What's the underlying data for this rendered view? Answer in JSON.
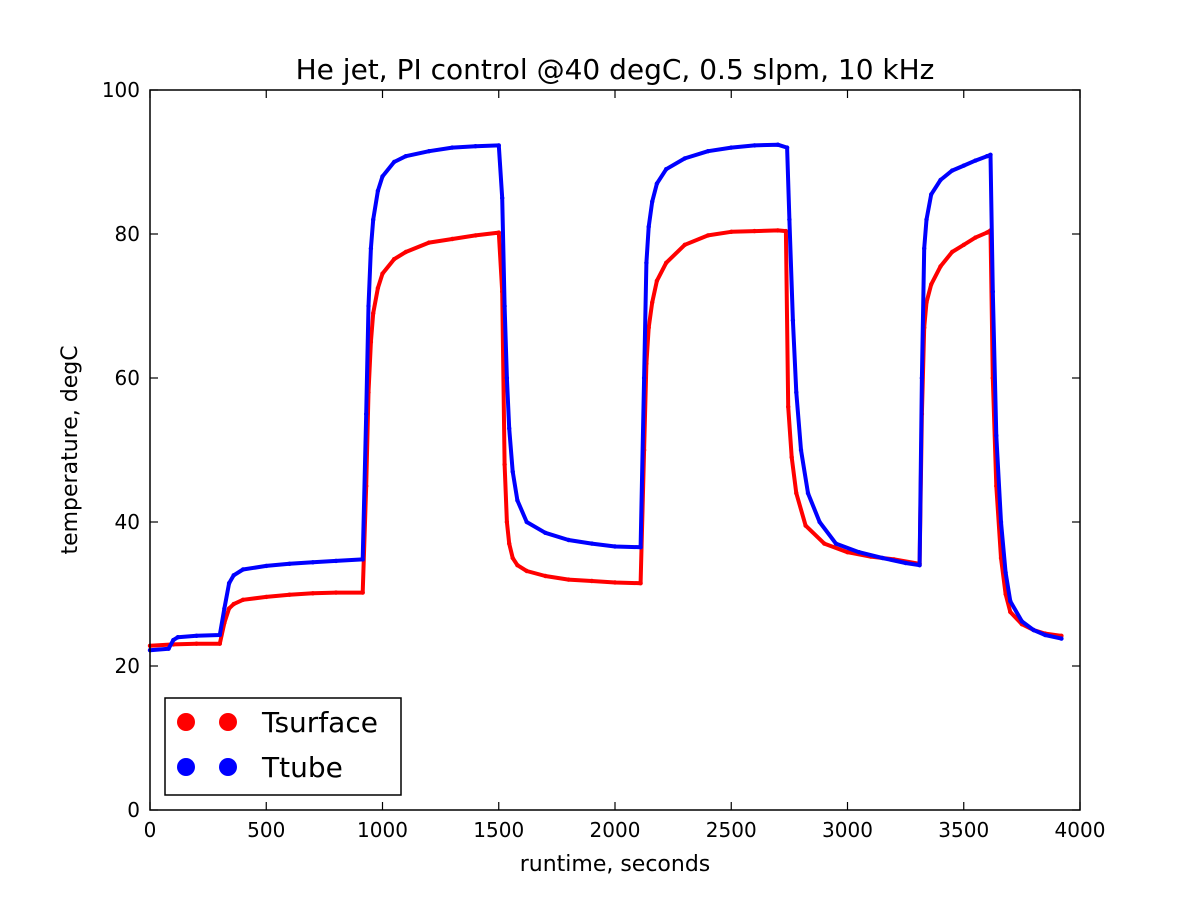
{
  "chart_data": {
    "type": "scatter",
    "title": "He jet, PI control @40 degC, 0.5 slpm, 10 kHz",
    "xlabel": "runtime, seconds",
    "ylabel": "temperature, degC",
    "xlim": [
      0,
      4000
    ],
    "ylim": [
      0,
      100
    ],
    "xticks": [
      0,
      500,
      1000,
      1500,
      2000,
      2500,
      3000,
      3500,
      4000
    ],
    "yticks": [
      0,
      20,
      40,
      60,
      80,
      100
    ],
    "xtick_labels": [
      "0",
      "500",
      "1000",
      "1500",
      "2000",
      "2500",
      "3000",
      "3500",
      "4000"
    ],
    "ytick_labels": [
      "0",
      "20",
      "40",
      "60",
      "80",
      "100"
    ],
    "grid": false,
    "legend": "lower-left",
    "series": [
      {
        "name": "Tsurface",
        "color": "#ff0000",
        "x": [
          0,
          100,
          200,
          300,
          320,
          340,
          360,
          400,
          500,
          600,
          700,
          800,
          915,
          930,
          940,
          950,
          960,
          980,
          1000,
          1050,
          1100,
          1200,
          1300,
          1400,
          1500,
          1515,
          1525,
          1535,
          1545,
          1560,
          1580,
          1620,
          1700,
          1800,
          1900,
          2000,
          2110,
          2125,
          2135,
          2145,
          2160,
          2180,
          2220,
          2300,
          2400,
          2500,
          2600,
          2700,
          2735,
          2745,
          2760,
          2780,
          2820,
          2900,
          3000,
          3100,
          3200,
          3310,
          3320,
          3330,
          3340,
          3360,
          3400,
          3450,
          3500,
          3550,
          3600,
          3615,
          3625,
          3640,
          3660,
          3680,
          3700,
          3750,
          3800,
          3850,
          3920
        ],
        "values": [
          22.8,
          23.0,
          23.1,
          23.1,
          26.0,
          28.0,
          28.6,
          29.2,
          29.6,
          29.9,
          30.1,
          30.2,
          30.2,
          45.0,
          58.0,
          65.0,
          69.0,
          72.5,
          74.5,
          76.5,
          77.5,
          78.8,
          79.3,
          79.8,
          80.2,
          72.0,
          48.0,
          40.0,
          37.0,
          35.0,
          34.0,
          33.2,
          32.5,
          32.0,
          31.8,
          31.6,
          31.5,
          50.0,
          62.0,
          67.0,
          70.5,
          73.5,
          76.0,
          78.5,
          79.8,
          80.3,
          80.4,
          80.5,
          80.4,
          56.0,
          49.0,
          44.0,
          39.5,
          37.0,
          35.8,
          35.2,
          34.8,
          34.2,
          55.0,
          67.0,
          70.5,
          73.0,
          75.5,
          77.5,
          78.5,
          79.5,
          80.2,
          80.5,
          60.0,
          45.0,
          35.0,
          30.0,
          27.5,
          25.8,
          25.0,
          24.5,
          24.2
        ]
      },
      {
        "name": "Ttube",
        "color": "#0000ff",
        "x": [
          0,
          80,
          100,
          120,
          200,
          300,
          320,
          340,
          360,
          400,
          500,
          600,
          700,
          800,
          915,
          930,
          940,
          950,
          960,
          980,
          1000,
          1050,
          1100,
          1200,
          1300,
          1400,
          1500,
          1515,
          1525,
          1535,
          1545,
          1560,
          1580,
          1620,
          1700,
          1800,
          1900,
          2000,
          2110,
          2125,
          2135,
          2145,
          2160,
          2180,
          2220,
          2300,
          2400,
          2500,
          2600,
          2700,
          2740,
          2750,
          2765,
          2780,
          2800,
          2830,
          2880,
          2950,
          3050,
          3150,
          3250,
          3310,
          3320,
          3330,
          3340,
          3360,
          3400,
          3450,
          3500,
          3550,
          3600,
          3615,
          3625,
          3640,
          3660,
          3680,
          3700,
          3750,
          3800,
          3850,
          3920
        ],
        "values": [
          22.2,
          22.4,
          23.6,
          24.0,
          24.2,
          24.3,
          28.0,
          31.5,
          32.6,
          33.4,
          33.9,
          34.2,
          34.4,
          34.6,
          34.8,
          55.0,
          70.0,
          78.0,
          82.0,
          86.0,
          88.0,
          90.0,
          90.8,
          91.5,
          92.0,
          92.2,
          92.3,
          85.0,
          70.0,
          60.0,
          53.0,
          47.0,
          43.0,
          40.0,
          38.5,
          37.5,
          37.0,
          36.6,
          36.5,
          60.0,
          76.0,
          81.0,
          84.5,
          87.0,
          89.0,
          90.5,
          91.5,
          92.0,
          92.3,
          92.4,
          92.0,
          82.0,
          68.0,
          58.0,
          50.0,
          44.0,
          40.0,
          37.0,
          35.8,
          35.0,
          34.3,
          34.0,
          60.0,
          78.0,
          82.0,
          85.5,
          87.5,
          88.8,
          89.5,
          90.2,
          90.8,
          91.0,
          72.0,
          52.0,
          40.0,
          33.0,
          29.0,
          26.2,
          25.0,
          24.3,
          23.8
        ]
      }
    ]
  }
}
